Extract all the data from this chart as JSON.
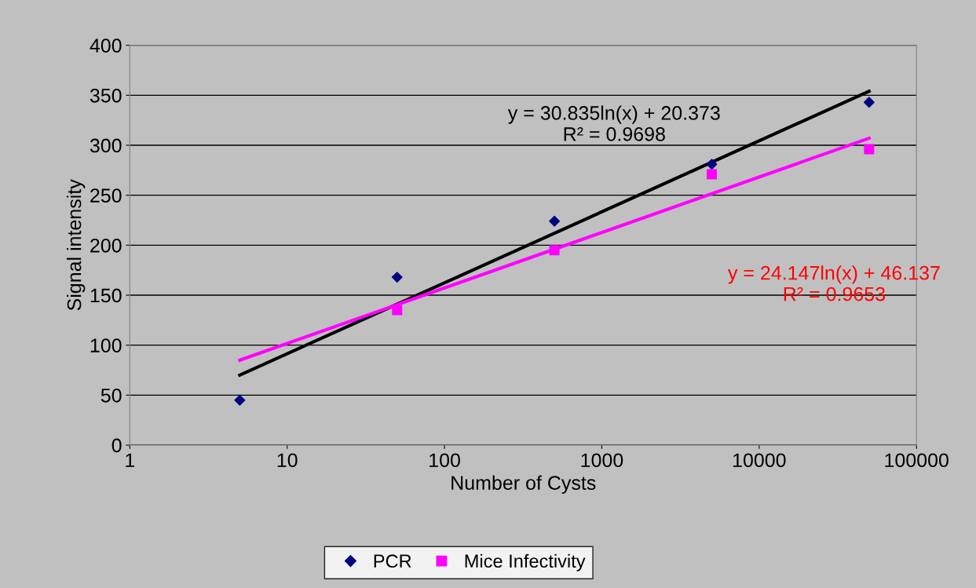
{
  "chart_data": {
    "type": "scatter",
    "xlabel": "Number of Cysts",
    "ylabel": "Signal intensity",
    "log": "x",
    "xlim": [
      1,
      100000
    ],
    "xticks": [
      1,
      10,
      100,
      1000,
      10000,
      100000
    ],
    "ylim": [
      0,
      400
    ],
    "yticks": [
      0,
      50,
      100,
      150,
      200,
      250,
      300,
      350,
      400
    ],
    "grid": "y",
    "legend": "bottom",
    "series": [
      {
        "name": "PCR",
        "color": "#000080",
        "marker": "diamond",
        "x": [
          5,
          50,
          500,
          5000,
          50000
        ],
        "values": [
          45,
          168,
          224,
          281,
          343
        ]
      },
      {
        "name": "Mice Infectivity",
        "color": "#ff00ff",
        "marker": "square",
        "x": [
          50,
          500,
          5000,
          50000
        ],
        "values": [
          135,
          195,
          271,
          296
        ]
      },
      {
        "type": "line",
        "color": "#000000",
        "x": [
          5,
          50000
        ],
        "values": [
          70,
          354
        ]
      },
      {
        "type": "line",
        "color": "#ff00ff",
        "x": [
          5,
          50000
        ],
        "values": [
          85,
          307
        ]
      }
    ],
    "annotations": [
      "y = 30.835ln(x) + 20.373\nR² = 0.9698",
      "y = 24.147ln(x) + 46.137\nR² = 0.9653"
    ]
  }
}
